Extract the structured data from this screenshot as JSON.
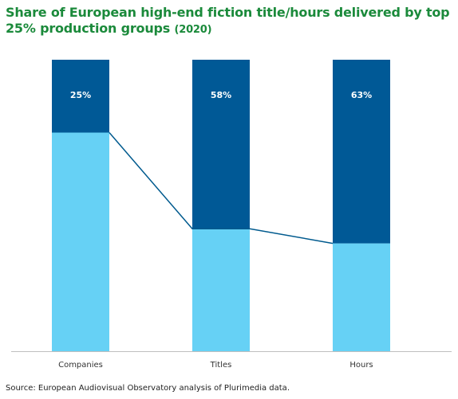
{
  "title": "Share of European high-end fiction title/hours delivered by top 25% production groups",
  "title_suffix": "(2020)",
  "source": "Source: European Audiovisual Observatory analysis of Plurimedia data.",
  "colors": {
    "title": "#1b8a3b",
    "top_share": "#005996",
    "rest": "#66d1f5",
    "line": "#005a8e",
    "axis": "#bfbfbf"
  },
  "chart_data": {
    "type": "bar",
    "stacked": true,
    "categories": [
      "Companies",
      "Titles",
      "Hours"
    ],
    "series": [
      {
        "values": [
          75,
          42,
          37
        ]
      },
      {
        "values": [
          25,
          58,
          63
        ]
      }
    ],
    "data_labels": [
      "25%",
      "58%",
      "63%"
    ],
    "connector_line": true,
    "ylim": [
      0,
      100
    ],
    "grid": false,
    "legend": "none"
  }
}
